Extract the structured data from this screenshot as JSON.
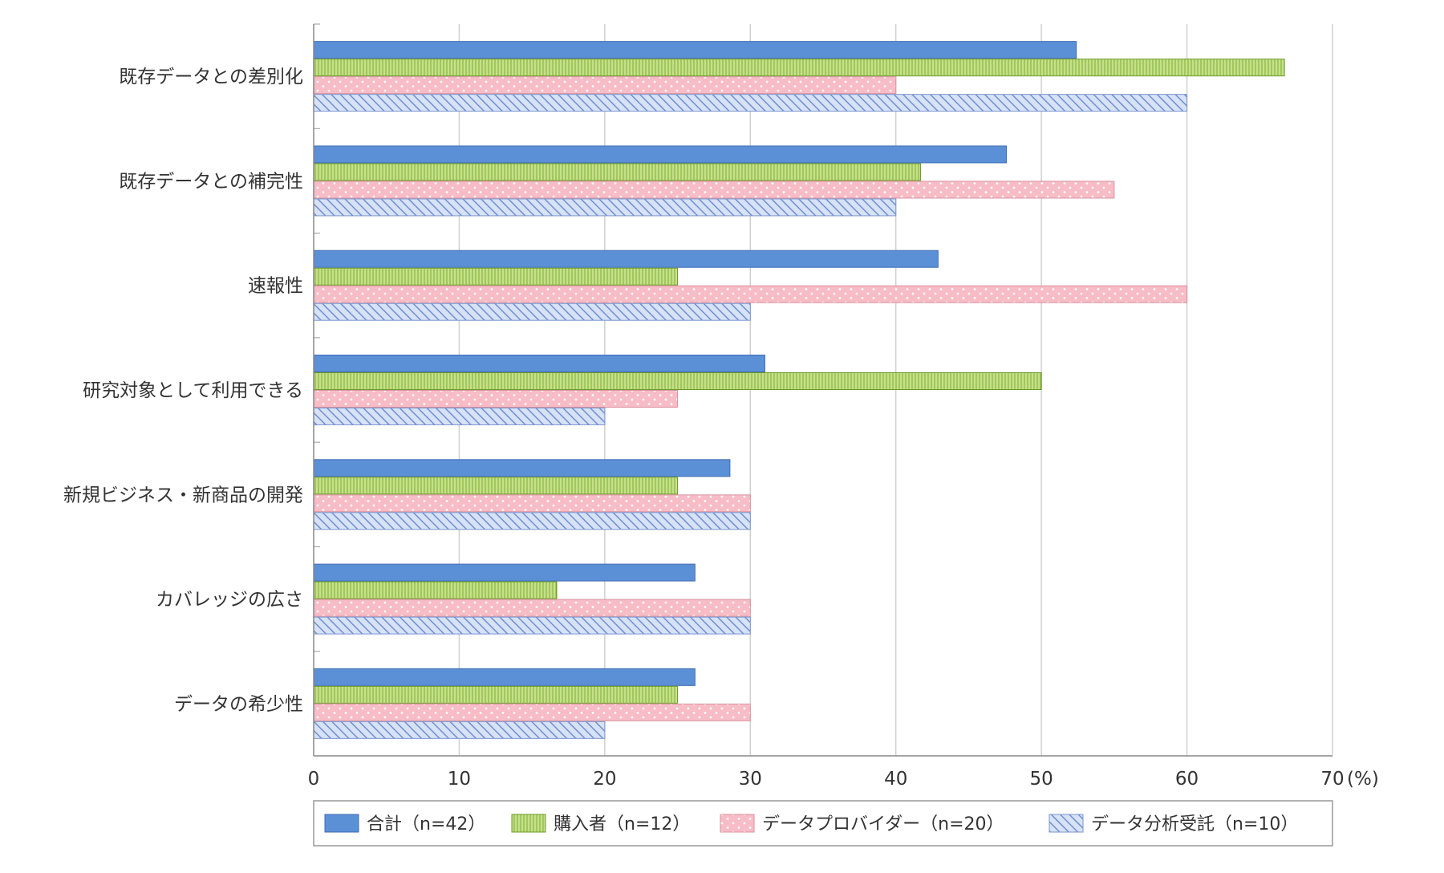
{
  "chart_data": {
    "type": "bar",
    "orientation": "horizontal",
    "categories": [
      "既存データとの差別化",
      "既存データとの補完性",
      "速報性",
      "研究対象として利用できる",
      "新規ビジネス・新商品の開発",
      "カバレッジの広さ",
      "データの希少性"
    ],
    "series": [
      {
        "name": "合計（n=42）",
        "values": [
          52.4,
          47.6,
          42.9,
          31.0,
          28.6,
          26.2,
          26.2
        ],
        "color": "#5b8fd6",
        "pattern": "solid"
      },
      {
        "name": "購入者（n=12）",
        "values": [
          66.7,
          41.7,
          25.0,
          50.0,
          25.0,
          16.7,
          25.0
        ],
        "color": "#c5e08a",
        "pattern": "vertical-lines"
      },
      {
        "name": "データプロバイダー（n=20）",
        "values": [
          40.0,
          55.0,
          60.0,
          25.0,
          30.0,
          30.0,
          30.0
        ],
        "color": "#f7bcc6",
        "pattern": "dots"
      },
      {
        "name": "データ分析受託（n=10）",
        "values": [
          60.0,
          40.0,
          30.0,
          20.0,
          30.0,
          30.0,
          20.0
        ],
        "color": "#c3d3f3",
        "pattern": "diagonal-lines"
      }
    ],
    "xlim": [
      0,
      70
    ],
    "xticks": [
      "0",
      "10",
      "20",
      "30",
      "40",
      "50",
      "60",
      "70"
    ],
    "unit": "(%)",
    "grid": true,
    "legend_position": "bottom"
  }
}
